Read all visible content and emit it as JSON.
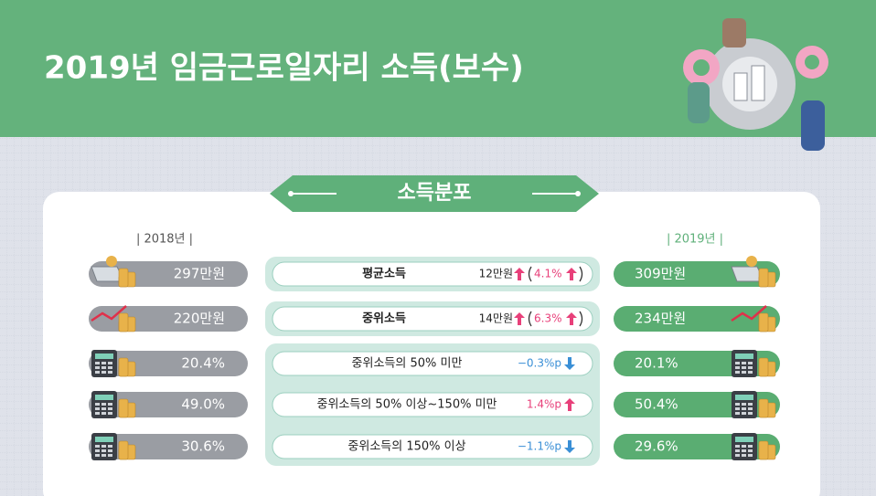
{
  "header": {
    "title": "2019년 임금근로일자리 소득(보수)"
  },
  "section": {
    "title": "소득분포"
  },
  "years": {
    "left": "| 2018년 |",
    "right": "| 2019년 |"
  },
  "rows": [
    {
      "icon": "money",
      "left": "297만원",
      "label": "평균소득",
      "change": "12만원",
      "change_dir": "up",
      "pct": "4.1%",
      "pct_dir": "up",
      "right": "309만원"
    },
    {
      "icon": "chart",
      "left": "220만원",
      "label": "중위소득",
      "change": "14만원",
      "change_dir": "up",
      "pct": "6.3%",
      "pct_dir": "up",
      "right": "234만원"
    },
    {
      "icon": "calc",
      "left": "20.4%",
      "label": "중위소득의 50% 미만",
      "change": "−0.3%p",
      "change_dir": "down",
      "right": "20.1%"
    },
    {
      "icon": "calc",
      "left": "49.0%",
      "label": "중위소득의 50% 이상~150% 미만",
      "change": "1.4%p",
      "change_dir": "up",
      "right": "50.4%"
    },
    {
      "icon": "calc",
      "left": "30.6%",
      "label": "중위소득의 150% 이상",
      "change": "−1.1%p",
      "change_dir": "down",
      "right": "29.6%"
    }
  ]
}
